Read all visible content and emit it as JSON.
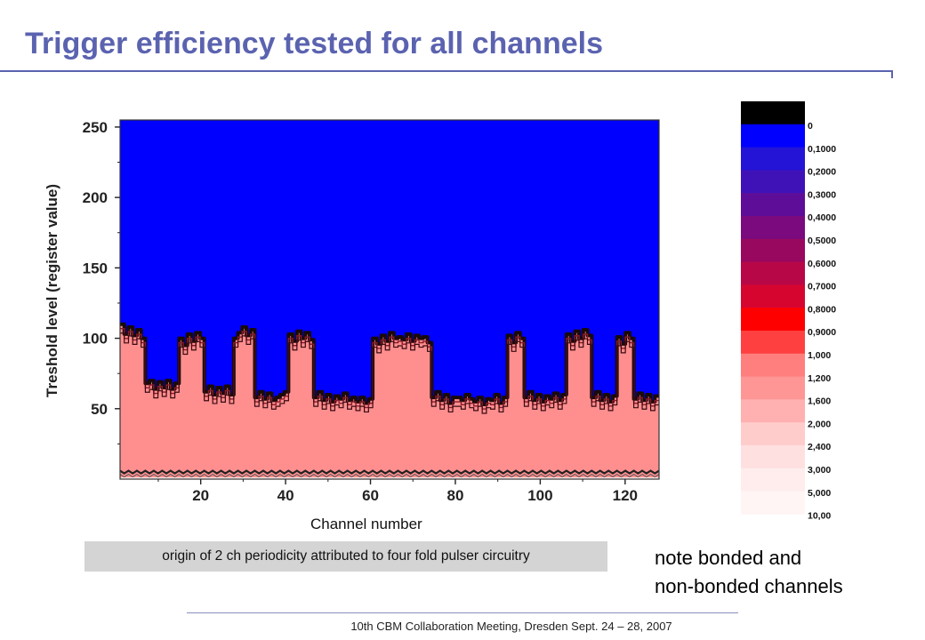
{
  "slide": {
    "title": "Trigger efficiency tested for all channels",
    "note_box": "origin of 2 ch periodicity attributed to four fold pulser circuitry",
    "side_note_line1": "note bonded and",
    "side_note_line2": "non-bonded channels",
    "footer": "10th CBM Collaboration Meeting, Dresden Sept. 24 – 28, 2007"
  },
  "chart_data": {
    "type": "heatmap",
    "xlabel": "Channel number",
    "ylabel": "Treshold level (register value)",
    "xlim": [
      1,
      128
    ],
    "ylim": [
      0,
      255
    ],
    "xticks": [
      20,
      40,
      60,
      80,
      100,
      120
    ],
    "yticks": [
      50,
      100,
      150,
      200,
      250
    ],
    "noise_floor_threshold": 5,
    "channels_start": 1,
    "threshold_edge_by_channel": [
      110,
      103,
      108,
      102,
      106,
      100,
      68,
      70,
      64,
      69,
      65,
      70,
      64,
      68,
      100,
      95,
      103,
      98,
      104,
      100,
      62,
      66,
      60,
      65,
      61,
      66,
      60,
      100,
      104,
      108,
      102,
      106,
      58,
      62,
      57,
      61,
      56,
      58,
      60,
      62,
      103,
      98,
      105,
      100,
      104,
      99,
      58,
      62,
      56,
      60,
      55,
      59,
      57,
      61,
      56,
      58,
      55,
      58,
      54,
      57,
      100,
      96,
      102,
      98,
      104,
      100,
      101,
      99,
      103,
      98,
      102,
      100,
      101,
      97,
      58,
      62,
      56,
      60,
      54,
      58,
      58,
      56,
      60,
      57,
      55,
      58,
      53,
      57,
      56,
      60,
      54,
      58,
      102,
      97,
      104,
      100,
      58,
      62,
      56,
      60,
      55,
      59,
      57,
      61,
      56,
      60,
      103,
      98,
      105,
      100,
      106,
      102,
      58,
      62,
      56,
      60,
      55,
      59,
      101,
      96,
      104,
      100,
      57,
      61,
      56,
      60,
      55,
      59
    ],
    "colorbar": {
      "labels": [
        "0",
        "0,1000",
        "0,2000",
        "0,3000",
        "0,4000",
        "0,5000",
        "0,6000",
        "0,7000",
        "0,8000",
        "0,9000",
        "1,000",
        "1,200",
        "1,600",
        "2,000",
        "2,400",
        "3,000",
        "5,000",
        "10,00"
      ],
      "colors": [
        "#000000",
        "#0000ff",
        "#2414d6",
        "#3f12b8",
        "#5e0d98",
        "#7a0a7e",
        "#98085f",
        "#b80747",
        "#d60530",
        "#ff0000",
        "#ff4040",
        "#ff7f7f",
        "#ff9696",
        "#ffb0b0",
        "#ffcccc",
        "#ffe0e0",
        "#ffeded",
        "#fff5f5"
      ]
    },
    "region_colors": {
      "above_threshold": "#0000ff",
      "below_threshold": "#ff8f8f",
      "boundary": "#1a0a0a"
    }
  }
}
